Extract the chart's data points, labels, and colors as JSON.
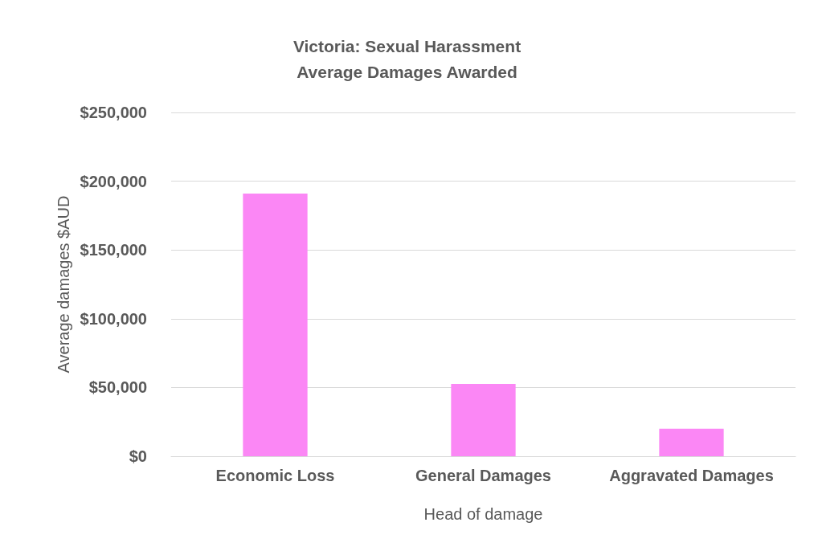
{
  "chart_data": {
    "type": "bar",
    "title": "Victoria: Sexual Harassment\nAverage Damages Awarded",
    "xlabel": "Head of damage",
    "ylabel": "Average damages $AUD",
    "categories": [
      "Economic Loss",
      "General Damages",
      "Aggravated Damages"
    ],
    "values": [
      191000,
      52500,
      20000
    ],
    "color": "#fb87f5",
    "ylim": [
      0,
      250000
    ],
    "yticks": [
      {
        "value": 0,
        "label": "$0"
      },
      {
        "value": 50000,
        "label": "$50,000"
      },
      {
        "value": 100000,
        "label": "$100,000"
      },
      {
        "value": 150000,
        "label": "$150,000"
      },
      {
        "value": 200000,
        "label": "$200,000"
      },
      {
        "value": 250000,
        "label": "$250,000"
      }
    ],
    "grid": true
  }
}
